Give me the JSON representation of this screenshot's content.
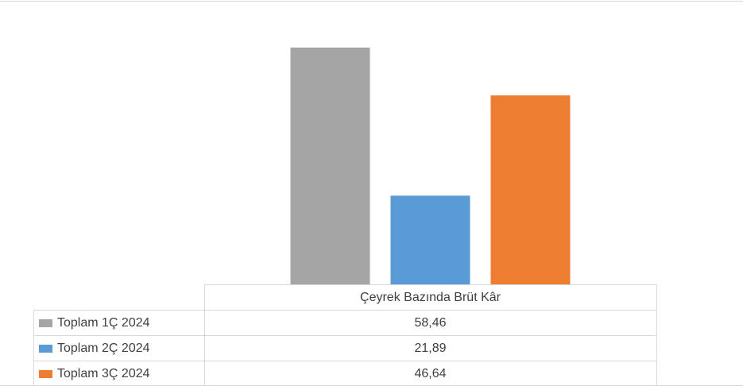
{
  "chart_data": {
    "type": "bar",
    "categories": [
      "Çeyrek Bazında Brüt Kâr"
    ],
    "series": [
      {
        "name": "Toplam 1Ç 2024",
        "color": "#a5a5a5",
        "values": [
          58.46
        ],
        "value_labels": [
          "58,46"
        ]
      },
      {
        "name": "Toplam 2Ç 2024",
        "color": "#5b9bd5",
        "values": [
          21.89
        ],
        "value_labels": [
          "21,89"
        ]
      },
      {
        "name": "Toplam 3Ç 2024",
        "color": "#ed7d31",
        "values": [
          46.64
        ],
        "value_labels": [
          "46,64"
        ]
      }
    ],
    "ylim": [
      0,
      70
    ]
  }
}
